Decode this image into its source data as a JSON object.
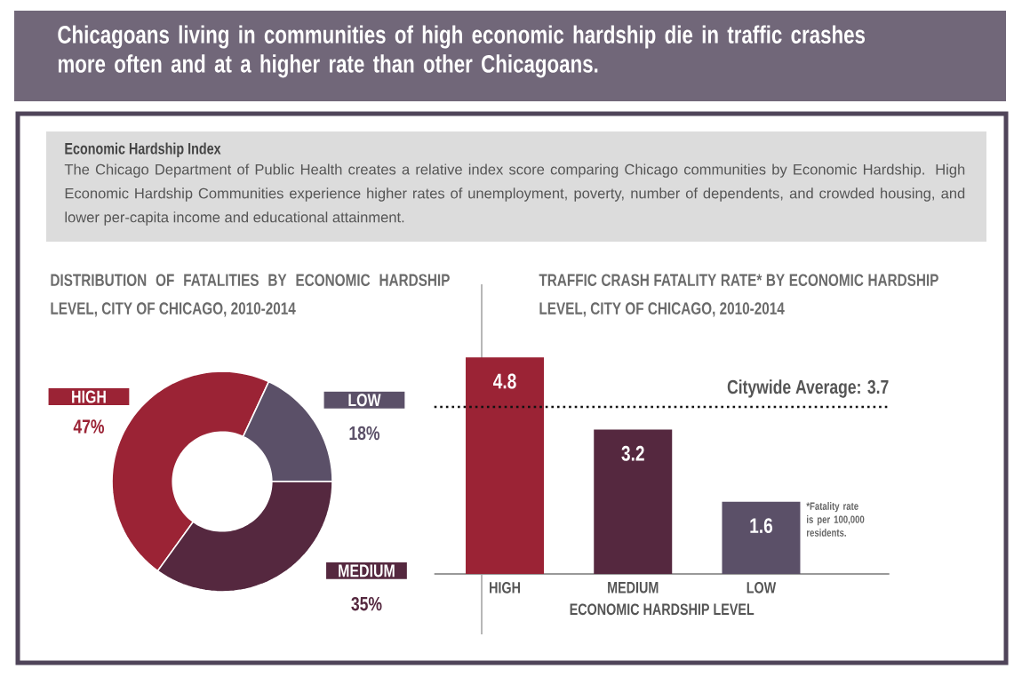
{
  "chart_data": [
    {
      "type": "other",
      "title": "Chicagoans living in communities of high economic hardship die in traffic crashes more often and at a higher rate than other Chicagoans.",
      "subtitle": "Economic Hardship Index",
      "annotations": [
        "The Chicago Department of Public Health creates a relative index score comparing Chicago communities by Economic Hardship. High Economic Hardship Communities experience higher rates of unemployment, poverty, number of dependents, and crowded housing, and lower per-capita income and educational attainment."
      ]
    },
    {
      "type": "donut",
      "title": "DISTRIBUTION OF FATALITIES BY ECONOMIC HARDSHIP LEVEL, CITY OF CHICAGO, 2010-2014",
      "categories": [
        "HIGH",
        "MEDIUM",
        "LOW"
      ],
      "values": [
        47,
        35,
        18
      ],
      "colors": [
        "#9b2335",
        "#55283f",
        "#5b5068"
      ],
      "value_labels": [
        "47%",
        "35%",
        "18%"
      ]
    },
    {
      "type": "bar",
      "title": "TRAFFIC CRASH FATALITY RATE* BY ECONOMIC HARDSHIP LEVEL, CITY OF CHICAGO, 2010-2014",
      "categories": [
        "HIGH",
        "MEDIUM",
        "LOW"
      ],
      "values": [
        4.8,
        3.2,
        1.6
      ],
      "colors": [
        "#9b2335",
        "#55283f",
        "#5b5068"
      ],
      "data_labels": true,
      "xlabel": "ECONOMIC HARDSHIP LEVEL",
      "tick_labels": "x",
      "ref_lines": [
        {
          "axis": "y",
          "value": 3.7,
          "label": "Citywide Average:  3.7",
          "line_style": "dotted",
          "color": "#111111"
        }
      ],
      "annotations": [
        "*Fatality rate is per 100,000 residents."
      ]
    }
  ]
}
